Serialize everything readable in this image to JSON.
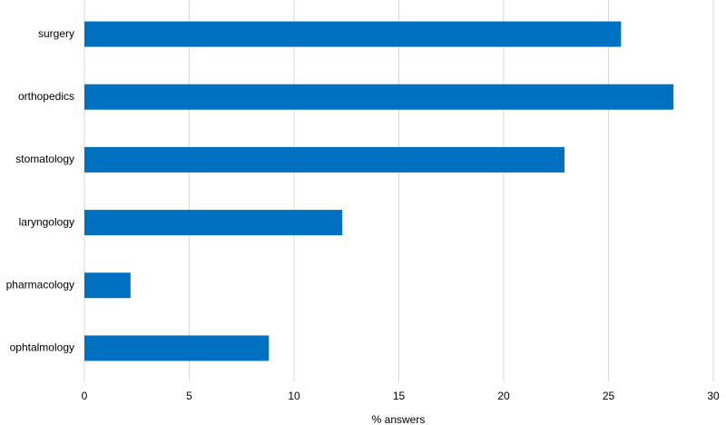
{
  "chart_data": {
    "type": "bar",
    "orientation": "horizontal",
    "x_label": "% answers",
    "categories": [
      "surgery",
      "orthopedics",
      "stomatology",
      "laryngology",
      "pharmacology",
      "ophtalmology"
    ],
    "values": [
      25.6,
      28.1,
      22.9,
      12.3,
      2.2,
      8.8
    ],
    "color": "#0070c0",
    "xlim": [
      0,
      30
    ],
    "xticks": [
      0,
      5,
      10,
      15,
      20,
      25,
      30
    ],
    "grid": true
  }
}
